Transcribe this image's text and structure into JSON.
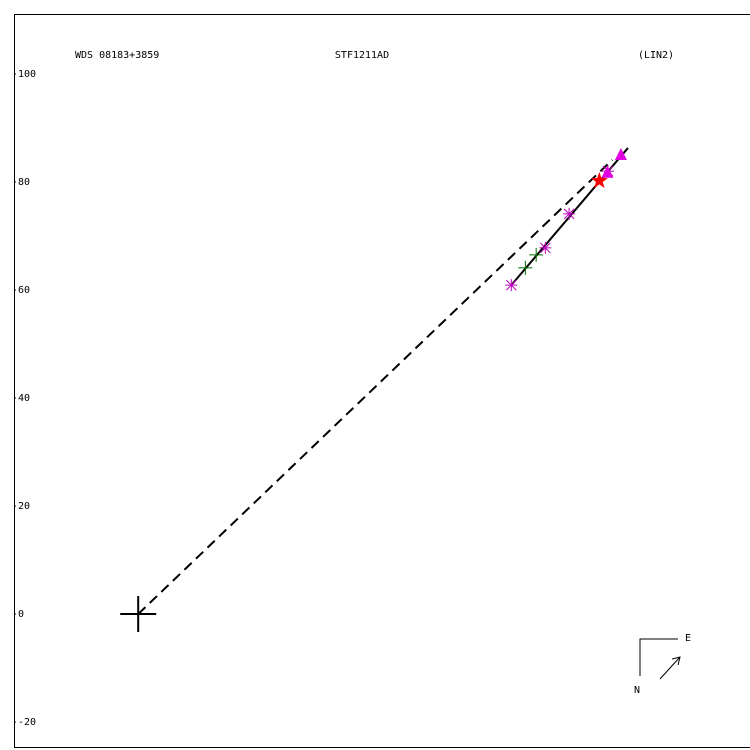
{
  "chart_data": {
    "type": "scatter",
    "wds_id": "WDS 08183+3859",
    "title": "STF1211AD",
    "reference": "(LIN2)",
    "compass": {
      "east": "E",
      "north": "N"
    },
    "xlim": [
      -23,
      113.3
    ],
    "ylim": [
      -24.8,
      111.1
    ],
    "yticks": [
      100,
      80,
      60,
      40,
      20,
      0,
      -20
    ],
    "series": [
      {
        "marker": "asterisk",
        "color": "#c000c0",
        "x": [
          69.1,
          75.4,
          79.8,
          87.0
        ],
        "y": [
          60.9,
          67.8,
          74.1,
          82.0
        ]
      },
      {
        "marker": "triangle",
        "color": "#e000e0",
        "x": [
          86.9,
          89.4
        ],
        "y": [
          81.7,
          85.0
        ]
      },
      {
        "marker": "plus",
        "color": "#007000",
        "x": [
          71.7,
          73.7
        ],
        "y": [
          64.1,
          66.5
        ]
      },
      {
        "marker": "star",
        "color": "#ff0000",
        "x": [
          85.4
        ],
        "y": [
          80.2
        ]
      },
      {
        "marker": "primary",
        "color": "#000000",
        "x": [
          0
        ],
        "y": [
          0
        ]
      }
    ],
    "lines": [
      {
        "style": "solid",
        "x": [
          69.1,
          90.7
        ],
        "y": [
          60.9,
          86.3
        ]
      },
      {
        "style": "dashed",
        "x": [
          0,
          87.8
        ],
        "y": [
          0,
          84.1
        ]
      }
    ]
  }
}
